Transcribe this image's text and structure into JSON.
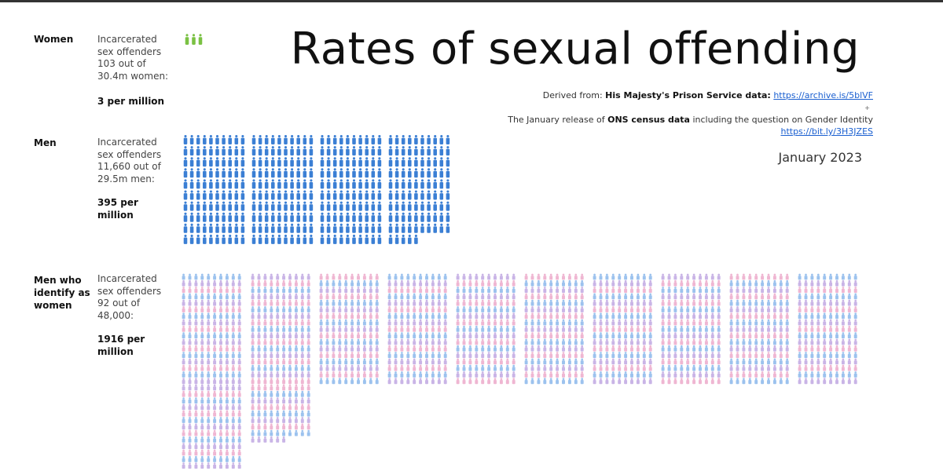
{
  "header": {
    "title": "Rates of sexual offending",
    "source1_prefix": "Derived from: ",
    "source1_bold": "His Majesty's Prison Service data:",
    "source1_link": "https://archive.is/5blVF",
    "plus": "+",
    "source2_prefix": "The January release of ",
    "source2_bold": "ONS census data",
    "source2_suffix": " including the question on Gender Identity",
    "source2_link": "https://bit.ly/3H3JZES",
    "date": "January 2023"
  },
  "chart_data": {
    "type": "pictogram",
    "title": "Rates of sexual offending",
    "unit": "incarcerated sex offenders per million",
    "rows": [
      {
        "name": "Women",
        "description": [
          "Incarcerated",
          "sex offenders",
          "103 out of",
          "30.4m women:"
        ],
        "offenders": 103,
        "population": "30.4m",
        "rate_label": [
          "3 per million"
        ],
        "rate_per_million": 3,
        "color": "#7ac143"
      },
      {
        "name": "Men",
        "description": [
          "Incarcerated",
          "sex offenders",
          "11,660 out of",
          "29.5m men:"
        ],
        "offenders": 11660,
        "population": "29.5m",
        "rate_label": [
          "395 per",
          "million"
        ],
        "rate_per_million": 395,
        "color": "#3b7fd4"
      },
      {
        "name": "Men who identify as women",
        "name_lines": [
          "Men who",
          "identify as",
          "women"
        ],
        "description": [
          "Incarcerated",
          "sex offenders",
          "92 out of",
          "48,000:"
        ],
        "offenders": 92,
        "population": "48,000",
        "rate_label": [
          "1916 per",
          "million"
        ],
        "rate_per_million": 1916,
        "colors": [
          "#9cc2ee",
          "#c9b4e6",
          "#efb6d2"
        ]
      }
    ]
  }
}
